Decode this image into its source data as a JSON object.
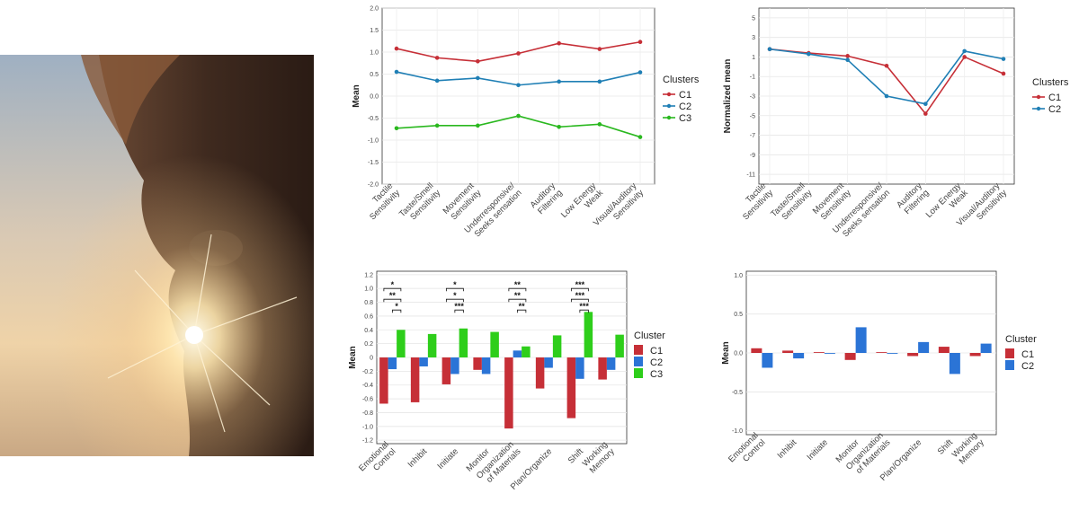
{
  "colors": {
    "c1": "#c62f37",
    "c2": "#1f7fb5",
    "c3": "#2ab81f",
    "c2_bar": "#2b74d6",
    "c3_bar": "#2ece1b"
  },
  "chart_data": [
    {
      "type": "line",
      "xlabel": "",
      "ylabel": "Mean",
      "ylim": [
        -2.0,
        2.0
      ],
      "yticks": [
        "2.0",
        "1.5",
        "1.0",
        "0.5",
        "0.0",
        "-0.5",
        "-1.0",
        "-1.5",
        "-2.0"
      ],
      "categories": [
        "Tactile\nSensitivity",
        "Taste/Smell\nSensitivity",
        "Movement\nSensitivity",
        "Underresponsive/\nSeeks sensation",
        "Auditory\nFiltering",
        "Low Energy\nWeak",
        "Visual/Auditory\nSensitivity"
      ],
      "legend_title": "Clusters",
      "legend_position": "right",
      "grid": true,
      "series": [
        {
          "name": "C1",
          "values": [
            1.08,
            0.87,
            0.79,
            0.97,
            1.2,
            1.07,
            1.23
          ]
        },
        {
          "name": "C2",
          "values": [
            0.55,
            0.35,
            0.41,
            0.25,
            0.33,
            0.33,
            0.54
          ]
        },
        {
          "name": "C3",
          "values": [
            -0.73,
            -0.67,
            -0.67,
            -0.45,
            -0.7,
            -0.64,
            -0.93
          ]
        }
      ]
    },
    {
      "type": "line",
      "xlabel": "",
      "ylabel": "Normalized mean",
      "ylim": [
        -12,
        6
      ],
      "yticks": [
        "5",
        "3",
        "1",
        "-1",
        "-3",
        "-5",
        "-7",
        "-9",
        "-11"
      ],
      "categories": [
        "Tactile\nSensitivity",
        "Taste/Smell\nSensitivity",
        "Movement\nSensitivity",
        "Underresponsive/\nSeeks sensation",
        "Auditory\nFiltering",
        "Low Energy\nWeak",
        "Visual/Auditory\nSensitivity"
      ],
      "legend_title": "Clusters",
      "legend_position": "right",
      "grid": true,
      "series": [
        {
          "name": "C1",
          "values": [
            1.8,
            1.4,
            1.1,
            0.1,
            -4.8,
            1.0,
            -0.7
          ]
        },
        {
          "name": "C2",
          "values": [
            1.8,
            1.3,
            0.7,
            -3.0,
            -3.8,
            1.6,
            0.8
          ]
        }
      ]
    },
    {
      "type": "bar",
      "xlabel": "",
      "ylabel": "Mean",
      "ylim": [
        -1.25,
        1.25
      ],
      "yticks": [
        "1.2",
        "1.0",
        "0.8",
        "0.6",
        "0.4",
        "0.2",
        "0",
        "-0.2",
        "-0.4",
        "-0.6",
        "-0.8",
        "-1.0",
        "-1.2"
      ],
      "categories": [
        "Emotional\nControl",
        "Inhibit",
        "Initiate",
        "Monitor",
        "Organization\nof Materials",
        "Plan/Organize",
        "Shift",
        "Working\nMemory"
      ],
      "legend_title": "Cluster",
      "legend_position": "right",
      "grid": true,
      "series": [
        {
          "name": "C1",
          "values": [
            -0.67,
            -0.65,
            -0.39,
            -0.18,
            -1.03,
            -0.45,
            -0.88,
            -0.32
          ]
        },
        {
          "name": "C2",
          "values": [
            -0.17,
            -0.13,
            -0.24,
            -0.24,
            0.1,
            -0.15,
            -0.31,
            -0.18
          ]
        },
        {
          "name": "C3",
          "values": [
            0.4,
            0.34,
            0.42,
            0.37,
            0.16,
            0.32,
            0.66,
            0.33
          ]
        }
      ],
      "annotations": [
        {
          "category": 0,
          "labels": [
            "*",
            "**",
            "*"
          ]
        },
        {
          "category": 2,
          "labels": [
            "*",
            "*",
            "***"
          ]
        },
        {
          "category": 4,
          "labels": [
            "**",
            "**",
            "**"
          ]
        },
        {
          "category": 6,
          "labels": [
            "***",
            "***",
            "***"
          ]
        }
      ]
    },
    {
      "type": "bar",
      "xlabel": "",
      "ylabel": "Mean",
      "ylim": [
        -1.05,
        1.05
      ],
      "yticks": [
        "1.0",
        "0.5",
        "0.0",
        "-0.5",
        "-1.0"
      ],
      "categories": [
        "Emotional\nControl",
        "Inhibit",
        "Initiate",
        "Monitor",
        "Organization\nof Materials",
        "Plan/Organize",
        "Shift",
        "Working\nMemory"
      ],
      "legend_title": "Cluster",
      "legend_position": "right",
      "grid": true,
      "series": [
        {
          "name": "C1",
          "values": [
            0.06,
            0.03,
            0.01,
            -0.09,
            0.01,
            -0.04,
            0.08,
            -0.04
          ]
        },
        {
          "name": "C2",
          "values": [
            -0.19,
            -0.07,
            -0.01,
            0.33,
            -0.01,
            0.14,
            -0.27,
            0.12
          ]
        }
      ]
    }
  ]
}
